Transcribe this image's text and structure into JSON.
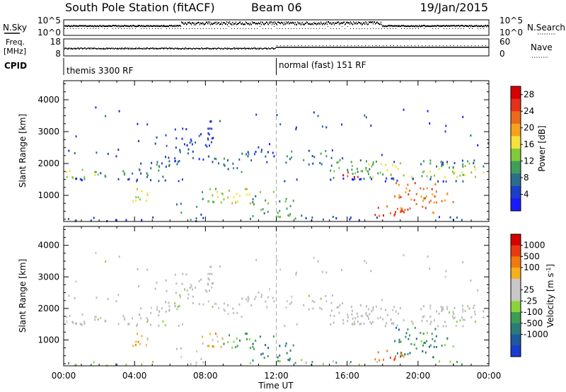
{
  "header": {
    "title": "South Pole Station (fitACF)",
    "beam": "Beam 06",
    "date": "19/Jan/2015"
  },
  "status_panels": {
    "nsky_label": "N.Sky",
    "nsearch_label": "N.Search",
    "nsky_ticks": [
      "10^5",
      "10^0"
    ],
    "nsearch_ticks": [
      "10^5",
      "10^0"
    ],
    "freq_label": "Freq.",
    "freq_unit": "[MHz]",
    "freq_ticks": [
      "18",
      "8"
    ],
    "nave_label": "Nave",
    "nave_ticks": [
      "60",
      "0"
    ],
    "cpid_label": "CPID",
    "cpid_modes": [
      {
        "name": "themis 3300 RF",
        "start_hour": 0
      },
      {
        "name": "normal (fast) 151 RF",
        "start_hour": 12
      }
    ]
  },
  "colors": {
    "white": "#ffffff",
    "power_colorbar": [
      "#1a1aff",
      "#1c3fc8",
      "#2a6e8c",
      "#3f9e5a",
      "#84c83c",
      "#f6e23a",
      "#f5a21e",
      "#ea6a1c",
      "#e4311a",
      "#d40000"
    ],
    "velocity_colorbar": [
      "#1a3ccc",
      "#1f5a9e",
      "#2a7c7a",
      "#3b9c52",
      "#8ad43a",
      "#c8c8c8",
      "#c8c8c8",
      "#f5b01e",
      "#f07a10",
      "#e83a10",
      "#d40000"
    ],
    "ground_scatter": "#bbbbbb"
  },
  "chart_data": [
    {
      "type": "heatmap",
      "name": "power",
      "ylabel": "Slant Range [km]",
      "xlabel": "",
      "x_ticks": [
        "00:00",
        "04:00",
        "08:00",
        "12:00",
        "16:00",
        "20:00",
        "00:00"
      ],
      "x_range_hours": [
        0,
        24
      ],
      "y_ticks": [
        1000,
        2000,
        3000,
        4000
      ],
      "ylim": [
        180,
        4600
      ],
      "colorbar_label": "Power",
      "colorbar_unit": "[dB]",
      "colorbar_ticks": [
        4,
        8,
        12,
        16,
        20,
        24,
        28
      ],
      "colorbar_range": [
        0,
        30
      ]
    },
    {
      "type": "heatmap",
      "name": "velocity",
      "ylabel": "Slant Range [km]",
      "xlabel": "Time UT",
      "x_ticks": [
        "00:00",
        "04:00",
        "08:00",
        "12:00",
        "16:00",
        "20:00",
        "00:00"
      ],
      "x_range_hours": [
        0,
        24
      ],
      "y_ticks": [
        1000,
        2000,
        3000,
        4000
      ],
      "ylim": [
        180,
        4600
      ],
      "colorbar_label": "Velocity",
      "colorbar_unit": "[m s",
      "colorbar_unit_exp": "-1",
      "colorbar_unit_end": "]",
      "colorbar_ticks": [
        1000,
        500,
        100,
        25,
        -25,
        -100,
        -500,
        -1000
      ]
    }
  ]
}
